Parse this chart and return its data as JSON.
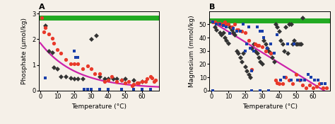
{
  "panel_A": {
    "title": "A",
    "xlabel": "Temperature (°C)",
    "ylabel": "Phosphate (μmol/kg)",
    "xlim": [
      -1,
      70
    ],
    "ylim": [
      0,
      3.1
    ],
    "yticks": [
      0,
      1,
      2,
      3
    ],
    "xticks": [
      0,
      10,
      20,
      30,
      40,
      50,
      60
    ],
    "green_line_y": 2.85,
    "red_circles": [
      [
        1,
        2.85
      ],
      [
        2,
        2.3
      ],
      [
        3,
        2.45
      ],
      [
        5,
        2.2
      ],
      [
        7,
        2.05
      ],
      [
        8,
        1.85
      ],
      [
        10,
        1.6
      ],
      [
        12,
        1.45
      ],
      [
        15,
        1.2
      ],
      [
        18,
        1.05
      ],
      [
        20,
        1.05
      ],
      [
        22,
        1.05
      ],
      [
        25,
        0.85
      ],
      [
        28,
        0.95
      ],
      [
        30,
        0.85
      ],
      [
        32,
        0.65
      ],
      [
        35,
        0.65
      ],
      [
        38,
        0.35
      ],
      [
        40,
        0.4
      ],
      [
        42,
        0.55
      ],
      [
        45,
        0.35
      ],
      [
        48,
        0.4
      ],
      [
        50,
        0.3
      ],
      [
        52,
        0.35
      ],
      [
        54,
        0.2
      ],
      [
        55,
        0.25
      ],
      [
        57,
        0.3
      ],
      [
        58,
        0.3
      ],
      [
        60,
        0.35
      ],
      [
        62,
        0.35
      ],
      [
        63,
        0.45
      ],
      [
        65,
        0.55
      ],
      [
        66,
        0.5
      ],
      [
        67,
        0.35
      ],
      [
        68,
        0.4
      ]
    ],
    "blue_squares": [
      [
        3,
        0.5
      ],
      [
        20,
        1.55
      ],
      [
        21,
        1.3
      ],
      [
        22,
        1.3
      ],
      [
        26,
        0.05
      ],
      [
        28,
        0.05
      ],
      [
        30,
        0.05
      ],
      [
        35,
        0.05
      ],
      [
        40,
        0.05
      ],
      [
        48,
        0.05
      ],
      [
        55,
        0.05
      ],
      [
        60,
        0.05
      ],
      [
        65,
        0.05
      ]
    ],
    "black_diamonds": [
      [
        3,
        2.55
      ],
      [
        5,
        1.55
      ],
      [
        7,
        1.5
      ],
      [
        8,
        0.9
      ],
      [
        10,
        0.85
      ],
      [
        12,
        0.55
      ],
      [
        15,
        0.55
      ],
      [
        18,
        0.5
      ],
      [
        20,
        0.45
      ],
      [
        22,
        0.45
      ],
      [
        25,
        0.45
      ],
      [
        30,
        2.0
      ],
      [
        33,
        2.15
      ],
      [
        35,
        0.55
      ],
      [
        38,
        0.45
      ],
      [
        40,
        0.45
      ],
      [
        43,
        0.45
      ],
      [
        45,
        0.45
      ],
      [
        48,
        0.4
      ],
      [
        50,
        0.45
      ],
      [
        55,
        0.4
      ],
      [
        60,
        0.35
      ]
    ],
    "curve_a": 1.78,
    "curve_b": 0.048,
    "curve_c": 0.08
  },
  "panel_B": {
    "title": "B",
    "xlabel": "Temperature (°C)",
    "ylabel": "Magnesium (mmol/kg)",
    "xlim": [
      -1,
      70
    ],
    "ylim": [
      0,
      60
    ],
    "yticks": [
      0,
      10,
      20,
      30,
      40,
      50
    ],
    "xticks": [
      0,
      10,
      20,
      30,
      40,
      50,
      60
    ],
    "green_line_y": 53.0,
    "red_circles": [
      [
        1,
        52
      ],
      [
        2,
        52
      ],
      [
        3,
        51
      ],
      [
        4,
        51
      ],
      [
        5,
        51
      ],
      [
        6,
        50
      ],
      [
        7,
        50
      ],
      [
        8,
        52
      ],
      [
        9,
        50
      ],
      [
        10,
        50
      ],
      [
        12,
        48
      ],
      [
        14,
        50
      ],
      [
        15,
        46
      ],
      [
        16,
        46
      ],
      [
        18,
        45
      ],
      [
        20,
        44
      ],
      [
        22,
        38
      ],
      [
        24,
        16
      ],
      [
        26,
        35
      ],
      [
        27,
        34
      ],
      [
        28,
        34
      ],
      [
        30,
        33
      ],
      [
        32,
        30
      ],
      [
        35,
        28
      ],
      [
        38,
        8
      ],
      [
        39,
        6
      ],
      [
        40,
        5
      ],
      [
        42,
        5
      ],
      [
        44,
        10
      ],
      [
        46,
        8
      ],
      [
        48,
        5
      ],
      [
        50,
        12
      ],
      [
        52,
        8
      ],
      [
        54,
        4
      ],
      [
        56,
        2
      ],
      [
        58,
        4
      ],
      [
        60,
        2
      ],
      [
        62,
        3
      ],
      [
        64,
        5
      ],
      [
        66,
        2
      ],
      [
        68,
        2
      ]
    ],
    "blue_squares": [
      [
        1,
        52
      ],
      [
        3,
        50
      ],
      [
        5,
        50
      ],
      [
        7,
        49
      ],
      [
        9,
        48
      ],
      [
        11,
        43
      ],
      [
        13,
        47
      ],
      [
        15,
        45
      ],
      [
        17,
        45
      ],
      [
        19,
        50
      ],
      [
        20,
        30
      ],
      [
        21,
        35
      ],
      [
        22,
        48
      ],
      [
        23,
        32
      ],
      [
        24,
        15
      ],
      [
        25,
        30
      ],
      [
        27,
        48
      ],
      [
        29,
        45
      ],
      [
        30,
        45
      ],
      [
        31,
        40
      ],
      [
        33,
        32
      ],
      [
        35,
        35
      ],
      [
        37,
        28
      ],
      [
        39,
        42
      ],
      [
        41,
        8
      ],
      [
        43,
        10
      ],
      [
        45,
        35
      ],
      [
        47,
        8
      ],
      [
        49,
        35
      ],
      [
        51,
        8
      ],
      [
        53,
        8
      ],
      [
        55,
        8
      ],
      [
        57,
        12
      ],
      [
        59,
        10
      ],
      [
        61,
        8
      ],
      [
        63,
        8
      ],
      [
        65,
        5
      ],
      [
        67,
        5
      ],
      [
        1,
        0
      ],
      [
        24,
        0
      ],
      [
        29,
        0
      ],
      [
        34,
        0
      ]
    ],
    "black_diamonds": [
      [
        2,
        48
      ],
      [
        3,
        46
      ],
      [
        5,
        44
      ],
      [
        6,
        42
      ],
      [
        7,
        44
      ],
      [
        8,
        40
      ],
      [
        9,
        38
      ],
      [
        10,
        36
      ],
      [
        11,
        48
      ],
      [
        12,
        46
      ],
      [
        13,
        44
      ],
      [
        14,
        42
      ],
      [
        15,
        30
      ],
      [
        16,
        28
      ],
      [
        17,
        25
      ],
      [
        18,
        22
      ],
      [
        19,
        28
      ],
      [
        20,
        18
      ],
      [
        21,
        15
      ],
      [
        22,
        12
      ],
      [
        23,
        10
      ],
      [
        24,
        32
      ],
      [
        25,
        35
      ],
      [
        26,
        30
      ],
      [
        27,
        28
      ],
      [
        28,
        25
      ],
      [
        29,
        22
      ],
      [
        30,
        20
      ],
      [
        31,
        38
      ],
      [
        32,
        35
      ],
      [
        33,
        32
      ],
      [
        34,
        30
      ],
      [
        35,
        28
      ],
      [
        36,
        25
      ],
      [
        37,
        22
      ],
      [
        38,
        50
      ],
      [
        39,
        48
      ],
      [
        40,
        45
      ],
      [
        41,
        38
      ],
      [
        42,
        35
      ],
      [
        43,
        30
      ],
      [
        44,
        48
      ],
      [
        45,
        28
      ],
      [
        46,
        50
      ],
      [
        47,
        50
      ],
      [
        48,
        35
      ],
      [
        49,
        38
      ],
      [
        50,
        35
      ],
      [
        51,
        35
      ],
      [
        52,
        35
      ],
      [
        53,
        35
      ],
      [
        54,
        55
      ]
    ],
    "curve_slope": -0.79,
    "curve_intercept": 52.5
  },
  "colors": {
    "red": "#e8392a",
    "blue": "#1a3faa",
    "black": "#333333",
    "green": "#22aa22",
    "curve": "#cc22aa"
  },
  "bg_color": "#f5f0e8"
}
